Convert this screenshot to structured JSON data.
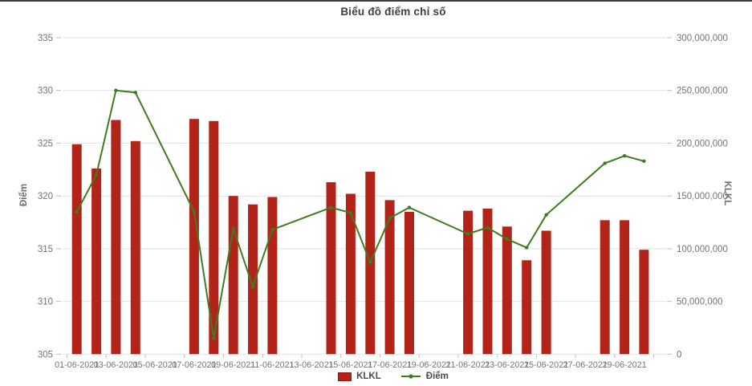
{
  "chart": {
    "title": "Biểu đồ điểm chỉ số",
    "left_axis": {
      "title": "Điểm",
      "min": 305,
      "max": 335,
      "tick_step": 5,
      "ticks": [
        "335",
        "330",
        "325",
        "320",
        "315",
        "310",
        "305"
      ]
    },
    "right_axis": {
      "title": "KLKL",
      "min": 0,
      "max": 300000000,
      "ticks": [
        "300,000,000",
        "250,000,000",
        "200,000,000",
        "150,000,000",
        "100,000,000",
        "50,000,000",
        "0"
      ]
    },
    "x_axis": {
      "tick_labels": [
        "01-06-2021",
        "03-06-2021",
        "05-06-2021",
        "07-06-2021",
        "09-06-2021",
        "11-06-2021",
        "13-06-2021",
        "15-06-2021",
        "17-06-2021",
        "19-06-2021",
        "21-06-2021",
        "23-06-2021",
        "25-06-2021",
        "27-06-2021",
        "29-06-2021"
      ]
    },
    "legend": [
      {
        "label": "KLKL",
        "type": "bar",
        "color": "#b2231a"
      },
      {
        "label": "Điểm",
        "type": "line",
        "color": "#3e7c20"
      }
    ],
    "colors": {
      "bar": "#b2231a",
      "line": "#3e7c20",
      "grid": "#e2e2e2",
      "tick": "#bdbdbd",
      "tick_text": "#757575",
      "title_text": "#3f3f3f"
    }
  },
  "chart_data": {
    "type": "combo",
    "title": "Biểu đồ điểm chỉ số",
    "grid": "horizontal",
    "legend_position": "bottom",
    "x": [
      "01-06-2021",
      "02-06-2021",
      "03-06-2021",
      "04-06-2021",
      "07-06-2021",
      "08-06-2021",
      "09-06-2021",
      "10-06-2021",
      "11-06-2021",
      "14-06-2021",
      "15-06-2021",
      "16-06-2021",
      "17-06-2021",
      "18-06-2021",
      "21-06-2021",
      "22-06-2021",
      "23-06-2021",
      "24-06-2021",
      "25-06-2021",
      "28-06-2021",
      "29-06-2021",
      "30-06-2021"
    ],
    "left_ylabel": "Điểm",
    "right_ylabel": "KLKL",
    "left_ylim": [
      305,
      335
    ],
    "right_ylim": [
      0,
      300000000
    ],
    "series": [
      {
        "name": "KLKL",
        "type": "bar",
        "axis": "right",
        "color": "#b2231a",
        "values": [
          199000000,
          176000000,
          222000000,
          202000000,
          223000000,
          221000000,
          150000000,
          142000000,
          149000000,
          163000000,
          152000000,
          173000000,
          146000000,
          135000000,
          136000000,
          138000000,
          121000000,
          89000000,
          117000000,
          127000000,
          127000000,
          99000000
        ]
      },
      {
        "name": "Điểm",
        "type": "line",
        "axis": "left",
        "color": "#3e7c20",
        "values": [
          318.5,
          322.0,
          330.0,
          329.8,
          318.5,
          306.5,
          316.9,
          311.4,
          316.8,
          318.9,
          318.4,
          313.7,
          317.9,
          318.9,
          316.4,
          317.0,
          315.9,
          315.1,
          318.2,
          323.1,
          323.8,
          323.3
        ]
      }
    ]
  }
}
